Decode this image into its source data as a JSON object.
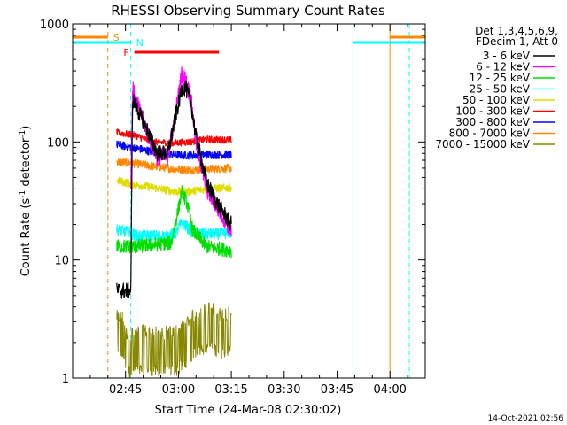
{
  "chart_data": {
    "type": "line",
    "title": "RHESSI Observing Summary Count Rates",
    "xlabel": "Start Time (24-Mar-08 02:30:02)",
    "ylabel_main": "Count Rate (s",
    "ylabel_sup1": "-1",
    "ylabel_mid": " detector",
    "ylabel_sup2": "-1",
    "ylabel_end": ")",
    "yscale": "log",
    "ylim": [
      1,
      1000
    ],
    "xlim": [
      0,
      100
    ],
    "x_unit": "minutes after 02:30:02",
    "x_ticks": [
      {
        "value": 15,
        "label": "02:45"
      },
      {
        "value": 30,
        "label": "03:00"
      },
      {
        "value": 45,
        "label": "03:15"
      },
      {
        "value": 60,
        "label": "03:30"
      },
      {
        "value": 75,
        "label": "03:45"
      },
      {
        "value": 90,
        "label": "04:00"
      }
    ],
    "y_ticks": [
      {
        "value": 1,
        "label": "1"
      },
      {
        "value": 10,
        "label": "10"
      },
      {
        "value": 100,
        "label": "100"
      },
      {
        "value": 1000,
        "label": "1000"
      }
    ],
    "legend_header": [
      "Det 1,3,4,5,6,9,",
      "FDecim 1, Att 0"
    ],
    "series": [
      {
        "name": "3 - 6 keV",
        "color": "#000000",
        "x": [
          12.5,
          16.5,
          17.0,
          18.0,
          20.0,
          24.0,
          27.0,
          29.5,
          31.0,
          32.0,
          33.5,
          35.0,
          38.0,
          41.0,
          45.0
        ],
        "y": [
          5.5,
          5.5,
          230.0,
          200.0,
          150.0,
          80.0,
          80.0,
          180.0,
          280.0,
          290.0,
          220.0,
          110.0,
          45.0,
          30.0,
          20.0
        ]
      },
      {
        "name": "6 - 12 keV",
        "color": "#ff00ff",
        "x": [
          16.5,
          17.0,
          18.0,
          20.0,
          24.0,
          27.0,
          29.5,
          31.0,
          32.0,
          33.5,
          35.0,
          38.0,
          41.0,
          45.0
        ],
        "y": [
          40.0,
          280.0,
          220.0,
          150.0,
          75.0,
          75.0,
          200.0,
          380.0,
          330.0,
          240.0,
          100.0,
          40.0,
          28.0,
          18.0
        ]
      },
      {
        "name": "12 - 25 keV",
        "color": "#00dd00",
        "x": [
          12.5,
          16.5,
          18.0,
          24.0,
          28.0,
          31.0,
          32.5,
          34.0,
          38.0,
          45.0
        ],
        "y": [
          13.0,
          13.0,
          13.0,
          13.5,
          14.0,
          38.0,
          30.0,
          18.0,
          13.0,
          12.0
        ]
      },
      {
        "name": "25 - 50 keV",
        "color": "#00ffff",
        "x": [
          12.5,
          16.5,
          18.0,
          26.0,
          29.0,
          31.0,
          34.0,
          40.0,
          45.0
        ],
        "y": [
          18.0,
          17.0,
          16.0,
          16.0,
          16.5,
          21.0,
          17.0,
          16.5,
          17.0
        ]
      },
      {
        "name": "50 - 100 keV",
        "color": "#dddd00",
        "x": [
          12.5,
          17.0,
          23.0,
          29.0,
          33.0,
          38.0,
          45.0
        ],
        "y": [
          47.0,
          44.0,
          41.0,
          38.0,
          38.0,
          40.0,
          41.0
        ]
      },
      {
        "name": "100 - 300 keV",
        "color": "#ff0000",
        "x": [
          12.5,
          17.0,
          23.0,
          29.0,
          33.0,
          38.0,
          45.0
        ],
        "y": [
          120.0,
          115.0,
          100.0,
          98.0,
          100.0,
          105.0,
          104.0
        ]
      },
      {
        "name": "300 - 800 keV",
        "color": "#0000ff",
        "x": [
          12.5,
          17.0,
          23.0,
          29.0,
          33.0,
          38.0,
          45.0
        ],
        "y": [
          95.0,
          90.0,
          82.0,
          78.0,
          77.0,
          78.0,
          78.0
        ]
      },
      {
        "name": "800 - 7000 keV",
        "color": "#ff8800",
        "x": [
          12.5,
          17.0,
          23.0,
          29.0,
          33.0,
          38.0,
          45.0
        ],
        "y": [
          68.0,
          66.0,
          62.0,
          59.0,
          58.0,
          59.0,
          60.0
        ]
      },
      {
        "name": "7000 - 15000 keV",
        "color": "#888800",
        "x": [
          12.5,
          14.5,
          15.0,
          20.0,
          25.0,
          30.0,
          35.0,
          39.0,
          42.0,
          45.0
        ],
        "y": [
          2.5,
          2.5,
          1.8,
          1.9,
          1.8,
          1.9,
          2.7,
          3.0,
          2.6,
          2.8
        ]
      }
    ],
    "flags": [
      {
        "label": "S",
        "color": "#ff8800",
        "band": "top",
        "segments": [
          [
            0,
            10.0
          ],
          [
            90.0,
            100
          ]
        ],
        "boundaries": [
          10.0,
          90.0
        ]
      },
      {
        "label": "N",
        "color": "#00ffff",
        "band": "second",
        "segments": [
          [
            0,
            16.5
          ],
          [
            79.5,
            100
          ]
        ],
        "boundaries": [
          16.5,
          79.5,
          95.5
        ]
      },
      {
        "label": "F",
        "color": "#ff0000",
        "band": "third",
        "segments": [
          [
            17.5,
            41.5
          ]
        ],
        "boundaries": []
      }
    ],
    "timestamp": "14-Oct-2021 02:56"
  }
}
